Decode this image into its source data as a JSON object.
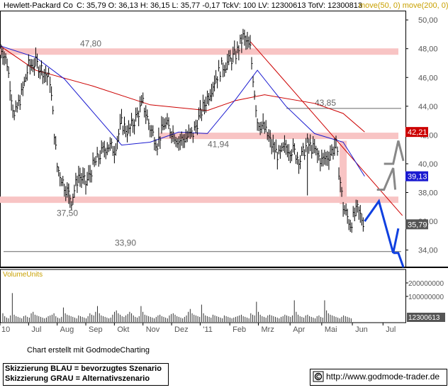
{
  "header": {
    "symbol": "Hewlett-Packard Co",
    "quote": "C: 35,79  O: 36,13  H: 36,15  L: 35,77  -0,17  TckV: 100  LV: 12300613  TotV: 12300813",
    "indicator": "move(50, 0)  move(200, 0)"
  },
  "colors": {
    "price": "#000000",
    "ma50": "#1a1ad0",
    "ma200": "#cc0000",
    "zone": "#f8c4c4",
    "blue_scenario": "#1040e0",
    "gray_scenario": "#888888",
    "trendline": "#cc0000",
    "axis_text": "#555555"
  },
  "chart_data": {
    "type": "line",
    "title": "Hewlett-Packard Co",
    "y_axis": {
      "ylim": [
        32.8,
        50.4
      ],
      "ticks": [
        34,
        36,
        38,
        40,
        42,
        44,
        46,
        48,
        50
      ],
      "tick_labels": [
        "34,00",
        "36,00",
        "38,00",
        "40,00",
        "42,00",
        "44,00",
        "46,00",
        "48,00",
        "50,00"
      ],
      "position": "right"
    },
    "x_axis": {
      "ticks": [
        "10",
        "Jul",
        "Aug",
        "Sep",
        "Okt",
        "Nov",
        "Dez",
        "'11",
        "Feb",
        "Mrz",
        "Apr",
        "Mai",
        "Jun",
        "Jul"
      ]
    },
    "price_path": [
      {
        "x": "2010-06-21",
        "y": 48.3
      },
      {
        "x": "2010-06-28",
        "y": 47.0
      },
      {
        "x": "2010-07-05",
        "y": 43.2
      },
      {
        "x": "2010-07-12",
        "y": 44.8
      },
      {
        "x": "2010-07-19",
        "y": 46.8
      },
      {
        "x": "2010-07-26",
        "y": 47.0
      },
      {
        "x": "2010-08-02",
        "y": 46.5
      },
      {
        "x": "2010-08-09",
        "y": 45.8
      },
      {
        "x": "2010-08-16",
        "y": 39.8
      },
      {
        "x": "2010-08-23",
        "y": 38.5
      },
      {
        "x": "2010-08-30",
        "y": 37.5
      },
      {
        "x": "2010-09-06",
        "y": 39.2
      },
      {
        "x": "2010-09-13",
        "y": 38.6
      },
      {
        "x": "2010-09-20",
        "y": 39.8
      },
      {
        "x": "2010-09-27",
        "y": 40.6
      },
      {
        "x": "2010-10-04",
        "y": 41.3
      },
      {
        "x": "2010-10-11",
        "y": 41.0
      },
      {
        "x": "2010-10-18",
        "y": 42.8
      },
      {
        "x": "2010-10-25",
        "y": 42.2
      },
      {
        "x": "2010-11-01",
        "y": 43.2
      },
      {
        "x": "2010-11-08",
        "y": 44.2
      },
      {
        "x": "2010-11-15",
        "y": 42.5
      },
      {
        "x": "2010-11-22",
        "y": 41.4
      },
      {
        "x": "2010-11-29",
        "y": 42.8
      },
      {
        "x": "2010-12-06",
        "y": 42.3
      },
      {
        "x": "2010-12-13",
        "y": 41.6
      },
      {
        "x": "2010-12-20",
        "y": 41.8
      },
      {
        "x": "2010-12-27",
        "y": 42.1
      },
      {
        "x": "2011-01-03",
        "y": 43.4
      },
      {
        "x": "2011-01-10",
        "y": 44.6
      },
      {
        "x": "2011-01-17",
        "y": 45.8
      },
      {
        "x": "2011-01-24",
        "y": 46.7
      },
      {
        "x": "2011-01-31",
        "y": 47.1
      },
      {
        "x": "2011-02-07",
        "y": 47.6
      },
      {
        "x": "2011-02-14",
        "y": 48.8
      },
      {
        "x": "2011-02-21",
        "y": 48.0
      },
      {
        "x": "2011-02-28",
        "y": 43.0
      },
      {
        "x": "2011-03-07",
        "y": 42.4
      },
      {
        "x": "2011-03-14",
        "y": 41.3
      },
      {
        "x": "2011-03-21",
        "y": 40.5
      },
      {
        "x": "2011-03-28",
        "y": 41.2
      },
      {
        "x": "2011-04-04",
        "y": 40.9
      },
      {
        "x": "2011-04-11",
        "y": 40.3
      },
      {
        "x": "2011-04-18",
        "y": 41.4
      },
      {
        "x": "2011-04-25",
        "y": 40.9
      },
      {
        "x": "2011-05-02",
        "y": 40.2
      },
      {
        "x": "2011-05-09",
        "y": 40.6
      },
      {
        "x": "2011-05-16",
        "y": 41.3
      },
      {
        "x": "2011-05-23",
        "y": 37.0
      },
      {
        "x": "2011-05-30",
        "y": 35.8
      },
      {
        "x": "2011-06-06",
        "y": 36.8
      },
      {
        "x": "2011-06-13",
        "y": 35.79
      }
    ],
    "series": [
      {
        "name": "move(50, 0)",
        "values": [
          {
            "x": "2010-06-21",
            "y": 48.2
          },
          {
            "x": "2010-07-26",
            "y": 47.4
          },
          {
            "x": "2010-08-23",
            "y": 45.9
          },
          {
            "x": "2010-09-20",
            "y": 43.6
          },
          {
            "x": "2010-10-18",
            "y": 41.3
          },
          {
            "x": "2010-11-15",
            "y": 41.5
          },
          {
            "x": "2010-12-13",
            "y": 42.2
          },
          {
            "x": "2011-01-10",
            "y": 42.1
          },
          {
            "x": "2011-02-07",
            "y": 44.5
          },
          {
            "x": "2011-02-28",
            "y": 46.5
          },
          {
            "x": "2011-03-28",
            "y": 44.0
          },
          {
            "x": "2011-04-25",
            "y": 42.1
          },
          {
            "x": "2011-05-23",
            "y": 41.5
          },
          {
            "x": "2011-06-13",
            "y": 39.13
          }
        ]
      },
      {
        "name": "move(200, 0)",
        "values": [
          {
            "x": "2010-06-21",
            "y": 48.2
          },
          {
            "x": "2010-07-26",
            "y": 46.5
          },
          {
            "x": "2010-09-20",
            "y": 45.4
          },
          {
            "x": "2010-11-15",
            "y": 44.1
          },
          {
            "x": "2011-01-10",
            "y": 43.7
          },
          {
            "x": "2011-02-07",
            "y": 44.4
          },
          {
            "x": "2011-03-07",
            "y": 44.8
          },
          {
            "x": "2011-04-25",
            "y": 44.2
          },
          {
            "x": "2011-05-23",
            "y": 43.5
          },
          {
            "x": "2011-06-13",
            "y": 42.21
          }
        ]
      }
    ],
    "horizontal_levels": [
      {
        "value": 47.8,
        "label": "47,80",
        "style": "zone"
      },
      {
        "value": 43.85,
        "label": "43,85",
        "style": "line"
      },
      {
        "value": 41.94,
        "label": "41,94",
        "style": "zone"
      },
      {
        "value": 37.5,
        "label": "37,50",
        "style": "zone"
      },
      {
        "value": 33.9,
        "label": "33,90",
        "style": "line"
      }
    ],
    "trendline": [
      {
        "x": "2011-02-21",
        "y": 48.5
      },
      {
        "x": "2011-07-20",
        "y": 36.4
      }
    ],
    "scenario_blue": [
      {
        "x": "2011-06-13",
        "y": 36.0
      },
      {
        "x": "2011-06-27",
        "y": 37.4
      },
      {
        "x": "2011-07-11",
        "y": 33.8
      },
      {
        "x": "2011-07-16",
        "y": 35.5
      }
    ],
    "scenario_blue_target": [
      {
        "x": "2011-07-11",
        "y": 33.8
      },
      {
        "x": "2011-07-16",
        "y": 33.8
      },
      {
        "x": "2011-07-21",
        "y": 32.8
      }
    ],
    "scenario_gray": [
      {
        "x": "2011-06-25",
        "y": 38.2
      },
      {
        "x": "2011-07-02",
        "y": 38.2
      },
      {
        "x": "2011-07-11",
        "y": 39.7
      },
      {
        "x": "2011-07-13",
        "y": 38.2
      }
    ],
    "scenario_gray_upper": [
      {
        "x": "2011-07-02",
        "y": 40.0
      },
      {
        "x": "2011-07-11",
        "y": 40.0
      },
      {
        "x": "2011-07-16",
        "y": 41.6
      },
      {
        "x": "2011-07-21",
        "y": 40.2
      }
    ],
    "value_tags": [
      {
        "value": 42.21,
        "label": "42,21",
        "color": "#cc0000"
      },
      {
        "value": 39.13,
        "label": "39,13",
        "color": "#1a1ad0"
      },
      {
        "value": 35.79,
        "label": "35,79",
        "color": "#555555"
      }
    ],
    "volume_panel": {
      "title": "VolumeUnits",
      "tick_labels": [
        "200000000",
        "100000000"
      ],
      "last_label": "12300613",
      "bars": [
        12,
        8,
        6,
        5,
        9,
        40,
        10,
        8,
        7,
        6,
        5,
        8,
        9,
        7,
        6,
        12,
        14,
        10,
        9,
        8,
        7,
        6,
        5,
        6,
        8,
        9,
        10,
        12,
        8,
        6,
        5,
        7,
        20,
        12,
        10,
        9,
        8,
        7,
        6,
        5,
        9,
        8,
        7,
        6,
        5,
        8,
        12,
        10,
        9,
        14,
        22,
        12,
        9,
        8,
        7,
        6,
        5,
        6,
        10,
        14,
        16,
        12,
        10,
        8,
        7,
        9,
        11,
        14,
        12,
        9,
        7,
        6,
        8,
        22,
        14,
        10,
        9,
        8,
        7,
        6,
        5,
        7,
        9,
        10,
        8,
        7,
        6,
        5,
        9,
        11,
        12,
        10,
        8,
        7,
        6,
        5,
        7,
        9,
        14,
        18,
        12,
        10,
        9,
        8,
        7,
        24,
        12,
        9,
        8,
        7,
        6,
        10,
        9,
        8,
        7,
        6,
        5,
        9,
        8,
        7,
        6,
        5,
        6,
        7,
        8,
        9,
        10,
        8,
        7,
        6,
        5,
        12,
        10,
        9,
        28,
        14,
        10,
        8,
        7,
        6,
        9,
        10,
        9,
        8,
        7,
        6,
        5,
        7,
        8,
        10,
        9,
        8,
        7,
        9,
        30,
        14,
        10,
        8,
        7,
        6,
        9,
        10,
        8,
        7,
        6,
        5,
        8,
        9,
        7,
        6,
        30,
        16,
        12,
        10,
        9,
        8,
        7,
        6,
        5,
        7,
        9,
        8,
        7,
        6,
        5
      ]
    }
  },
  "footer": {
    "credit": "Chart erstellt mit GodmodeCharting",
    "legend_blue": "Skizzierung BLAU = bevorzugtes Szenario",
    "legend_gray": "Skizzierung GRAU = Alternativszenario",
    "url": "http://www.godmode-trader.de"
  }
}
